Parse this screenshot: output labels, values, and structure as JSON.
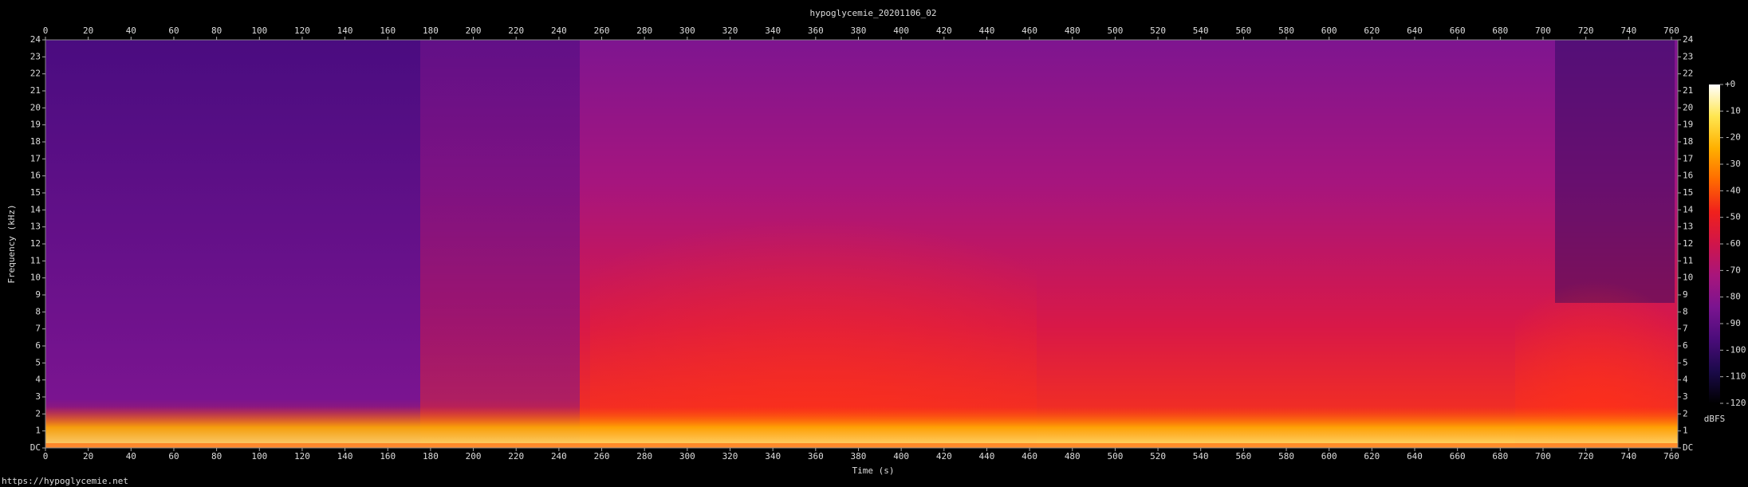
{
  "chart_data": {
    "type": "spectrogram",
    "title": "hypoglycemie_20201106_02",
    "x_label": "Time (s)",
    "y_label": "Frequency (kHz)",
    "xlim": [
      0,
      763
    ],
    "xticks": [
      0,
      20,
      40,
      60,
      80,
      100,
      120,
      140,
      160,
      180,
      200,
      220,
      240,
      260,
      280,
      300,
      320,
      340,
      360,
      380,
      400,
      420,
      440,
      460,
      480,
      500,
      520,
      540,
      560,
      580,
      600,
      620,
      640,
      660,
      680,
      700,
      720,
      740,
      760
    ],
    "ylim": [
      0,
      24
    ],
    "yticks": [
      {
        "value": 0,
        "label": "DC"
      },
      1,
      2,
      3,
      4,
      5,
      6,
      7,
      8,
      9,
      10,
      11,
      12,
      13,
      14,
      15,
      16,
      17,
      18,
      19,
      20,
      21,
      22,
      23,
      24
    ],
    "colorbar": {
      "label": "dBFS",
      "lim": [
        -120,
        0
      ],
      "ticks": [
        {
          "value": 0,
          "label": "+0"
        },
        -10,
        -20,
        -30,
        -40,
        -50,
        -60,
        -70,
        -80,
        -90,
        -100,
        -110,
        -120
      ],
      "colors": [
        "#000000",
        "#1b0a4a",
        "#4a0c7a",
        "#7a1490",
        "#a8157c",
        "#d0154a",
        "#f0201c",
        "#ff6a00",
        "#ffb000",
        "#ffe650",
        "#ffffff"
      ]
    },
    "source": "https://hypoglycemie.net"
  }
}
